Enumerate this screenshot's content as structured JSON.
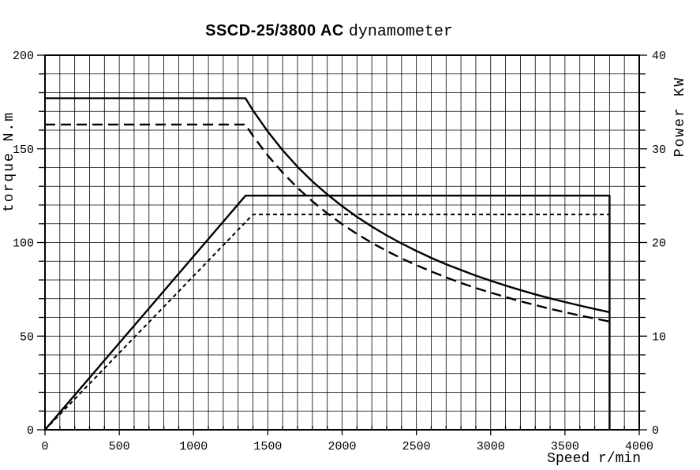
{
  "title": {
    "model": "SSCD-25/3800 AC",
    "suffix": "dynamometer",
    "full": "SSCD-25/3800 AC dynamometer"
  },
  "chart_data": {
    "type": "line",
    "title": "SSCD-25/3800 AC dynamometer",
    "background_color": "#ffffff",
    "line_color": "#000000",
    "grid": {
      "show": true,
      "x_minor_step": 100,
      "y_left_minor_step": 10
    },
    "legend": null,
    "x_axis": {
      "label": "Speed r/min",
      "min": 0,
      "max": 4000,
      "major_step": 500,
      "minor_step": 100,
      "tick_labels": [
        "0",
        "500",
        "1000",
        "1500",
        "2000",
        "2500",
        "3000",
        "3500",
        "4000"
      ]
    },
    "y_left_axis": {
      "label": "torque N.m",
      "min": 0,
      "max": 200,
      "major_step": 50,
      "minor_step": 10,
      "tick_labels": [
        "0",
        "50",
        "100",
        "150",
        "200"
      ]
    },
    "y_right_axis": {
      "label": "Power KW",
      "min": 0,
      "max": 40,
      "major_step": 10,
      "minor_step": 2,
      "tick_labels": [
        "0",
        "10",
        "20",
        "30",
        "40"
      ]
    },
    "series": [
      {
        "name": "torque-solid",
        "axis": "left",
        "style": "solid",
        "description": "constant torque 177 N.m to 1350 r/min, then constant-power hyperbola to 3800 r/min",
        "points": [
          [
            0,
            177
          ],
          [
            1350,
            177
          ],
          [
            1400,
            170.5
          ],
          [
            1500,
            159.2
          ],
          [
            1600,
            149.2
          ],
          [
            1700,
            140.4
          ],
          [
            1800,
            132.6
          ],
          [
            1900,
            125.7
          ],
          [
            2000,
            119.4
          ],
          [
            2100,
            113.7
          ],
          [
            2200,
            108.5
          ],
          [
            2300,
            103.8
          ],
          [
            2400,
            99.5
          ],
          [
            2500,
            95.5
          ],
          [
            2600,
            91.8
          ],
          [
            2700,
            88.4
          ],
          [
            2800,
            85.3
          ],
          [
            2900,
            82.3
          ],
          [
            3000,
            79.6
          ],
          [
            3100,
            77.0
          ],
          [
            3200,
            74.6
          ],
          [
            3300,
            72.3
          ],
          [
            3400,
            70.2
          ],
          [
            3500,
            68.2
          ],
          [
            3600,
            66.3
          ],
          [
            3700,
            64.5
          ],
          [
            3800,
            62.8
          ]
        ]
      },
      {
        "name": "torque-dashed",
        "axis": "left",
        "style": "dashed",
        "description": "constant torque 163 N.m to 1350 r/min, then constant-power hyperbola to 3800 r/min",
        "points": [
          [
            0,
            163
          ],
          [
            1350,
            163
          ],
          [
            1400,
            156.9
          ],
          [
            1500,
            146.4
          ],
          [
            1600,
            137.3
          ],
          [
            1700,
            129.2
          ],
          [
            1800,
            122.0
          ],
          [
            1900,
            115.6
          ],
          [
            2000,
            109.8
          ],
          [
            2100,
            104.6
          ],
          [
            2200,
            99.8
          ],
          [
            2300,
            95.5
          ],
          [
            2400,
            91.5
          ],
          [
            2500,
            87.9
          ],
          [
            2600,
            84.5
          ],
          [
            2700,
            81.4
          ],
          [
            2800,
            78.4
          ],
          [
            2900,
            75.7
          ],
          [
            3000,
            73.2
          ],
          [
            3100,
            70.9
          ],
          [
            3200,
            68.6
          ],
          [
            3300,
            66.6
          ],
          [
            3400,
            64.6
          ],
          [
            3500,
            62.8
          ],
          [
            3600,
            61.0
          ],
          [
            3700,
            59.4
          ],
          [
            3800,
            57.8
          ]
        ]
      },
      {
        "name": "power-solid",
        "axis": "right",
        "style": "solid",
        "description": "power rises linearly 0 to 25 KW at 1350 r/min, constant 25 KW to 3800 r/min, vertical drop at 3800",
        "points": [
          [
            0,
            0
          ],
          [
            1350,
            25
          ],
          [
            3800,
            25
          ],
          [
            3800,
            0
          ]
        ]
      },
      {
        "name": "power-dotted",
        "axis": "right",
        "style": "dotted",
        "description": "power rises linearly 0 to 23 KW at 1400 r/min, constant 23 KW to 3800 r/min",
        "points": [
          [
            0,
            0
          ],
          [
            1400,
            23
          ],
          [
            3800,
            23
          ]
        ]
      }
    ]
  }
}
